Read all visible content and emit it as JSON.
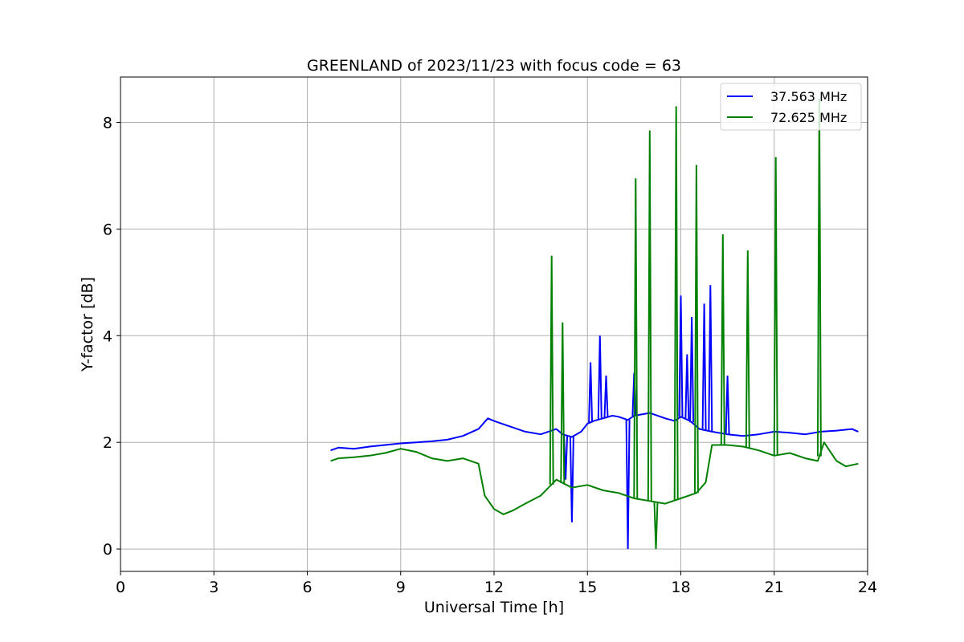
{
  "chart_data": {
    "type": "line",
    "title": "GREENLAND of 2023/11/23 with focus code = 63",
    "xlabel": "Universal Time [h]",
    "ylabel": "Y-factor [dB]",
    "xlim": [
      0,
      24
    ],
    "ylim": [
      -0.42,
      8.85
    ],
    "xticks": [
      0,
      3,
      6,
      9,
      12,
      15,
      18,
      21,
      24
    ],
    "yticks": [
      0,
      2,
      4,
      6,
      8
    ],
    "grid": true,
    "legend_position": "top-right",
    "series": [
      {
        "name": "37.563 MHz",
        "color": "#0000ff",
        "x": [
          6.75,
          7.0,
          7.5,
          8.0,
          8.5,
          9.0,
          9.5,
          10.0,
          10.5,
          11.0,
          11.5,
          11.8,
          12.0,
          12.5,
          13.0,
          13.5,
          14.0,
          14.2,
          14.5,
          14.8,
          15.0,
          15.2,
          15.5,
          15.8,
          16.0,
          16.3,
          16.5,
          17.0,
          17.5,
          17.8,
          18.0,
          18.3,
          18.6,
          19.0,
          19.5,
          20.0,
          20.5,
          21.0,
          21.5,
          22.0,
          22.5,
          23.0,
          23.5,
          23.7
        ],
        "y": [
          1.85,
          1.9,
          1.88,
          1.92,
          1.95,
          1.98,
          2.0,
          2.02,
          2.05,
          2.12,
          2.25,
          2.45,
          2.4,
          2.3,
          2.2,
          2.15,
          2.25,
          2.15,
          2.1,
          2.2,
          2.35,
          2.4,
          2.45,
          2.5,
          2.48,
          2.42,
          2.5,
          2.55,
          2.45,
          2.4,
          2.48,
          2.4,
          2.25,
          2.2,
          2.15,
          2.12,
          2.15,
          2.2,
          2.18,
          2.15,
          2.2,
          2.22,
          2.25,
          2.2
        ],
        "spikes": [
          {
            "x": 14.3,
            "y": 1.3
          },
          {
            "x": 14.5,
            "y": 0.5
          },
          {
            "x": 15.1,
            "y": 3.5
          },
          {
            "x": 15.4,
            "y": 4.0
          },
          {
            "x": 15.6,
            "y": 3.25
          },
          {
            "x": 16.3,
            "y": 0.0
          },
          {
            "x": 16.5,
            "y": 3.3
          },
          {
            "x": 18.0,
            "y": 4.75
          },
          {
            "x": 18.2,
            "y": 3.65
          },
          {
            "x": 18.35,
            "y": 4.35
          },
          {
            "x": 18.75,
            "y": 4.6
          },
          {
            "x": 18.95,
            "y": 4.95
          },
          {
            "x": 19.5,
            "y": 3.25
          }
        ]
      },
      {
        "name": "72.625 MHz",
        "color": "#008000",
        "x": [
          6.75,
          7.0,
          7.5,
          8.0,
          8.5,
          9.0,
          9.5,
          10.0,
          10.5,
          11.0,
          11.5,
          11.7,
          12.0,
          12.3,
          12.6,
          13.0,
          13.5,
          14.0,
          14.5,
          15.0,
          15.5,
          16.0,
          16.5,
          17.0,
          17.5,
          18.0,
          18.5,
          18.8,
          19.0,
          19.5,
          20.0,
          20.5,
          21.0,
          21.5,
          22.0,
          22.4,
          22.6,
          23.0,
          23.3,
          23.7
        ],
        "y": [
          1.65,
          1.7,
          1.72,
          1.75,
          1.8,
          1.88,
          1.82,
          1.7,
          1.65,
          1.7,
          1.6,
          1.0,
          0.75,
          0.65,
          0.72,
          0.85,
          1.0,
          1.3,
          1.15,
          1.2,
          1.1,
          1.05,
          0.95,
          0.9,
          0.85,
          0.95,
          1.05,
          1.25,
          1.95,
          1.95,
          1.92,
          1.85,
          1.75,
          1.8,
          1.7,
          1.65,
          2.0,
          1.65,
          1.55,
          1.6
        ],
        "spikes": [
          {
            "x": 13.85,
            "y": 5.5
          },
          {
            "x": 14.2,
            "y": 4.25
          },
          {
            "x": 16.55,
            "y": 6.95
          },
          {
            "x": 17.0,
            "y": 7.85
          },
          {
            "x": 17.2,
            "y": 0.0
          },
          {
            "x": 17.85,
            "y": 8.3
          },
          {
            "x": 18.5,
            "y": 7.2
          },
          {
            "x": 19.35,
            "y": 5.9
          },
          {
            "x": 20.15,
            "y": 5.6
          },
          {
            "x": 21.05,
            "y": 7.35
          },
          {
            "x": 22.45,
            "y": 8.45
          }
        ]
      }
    ]
  }
}
